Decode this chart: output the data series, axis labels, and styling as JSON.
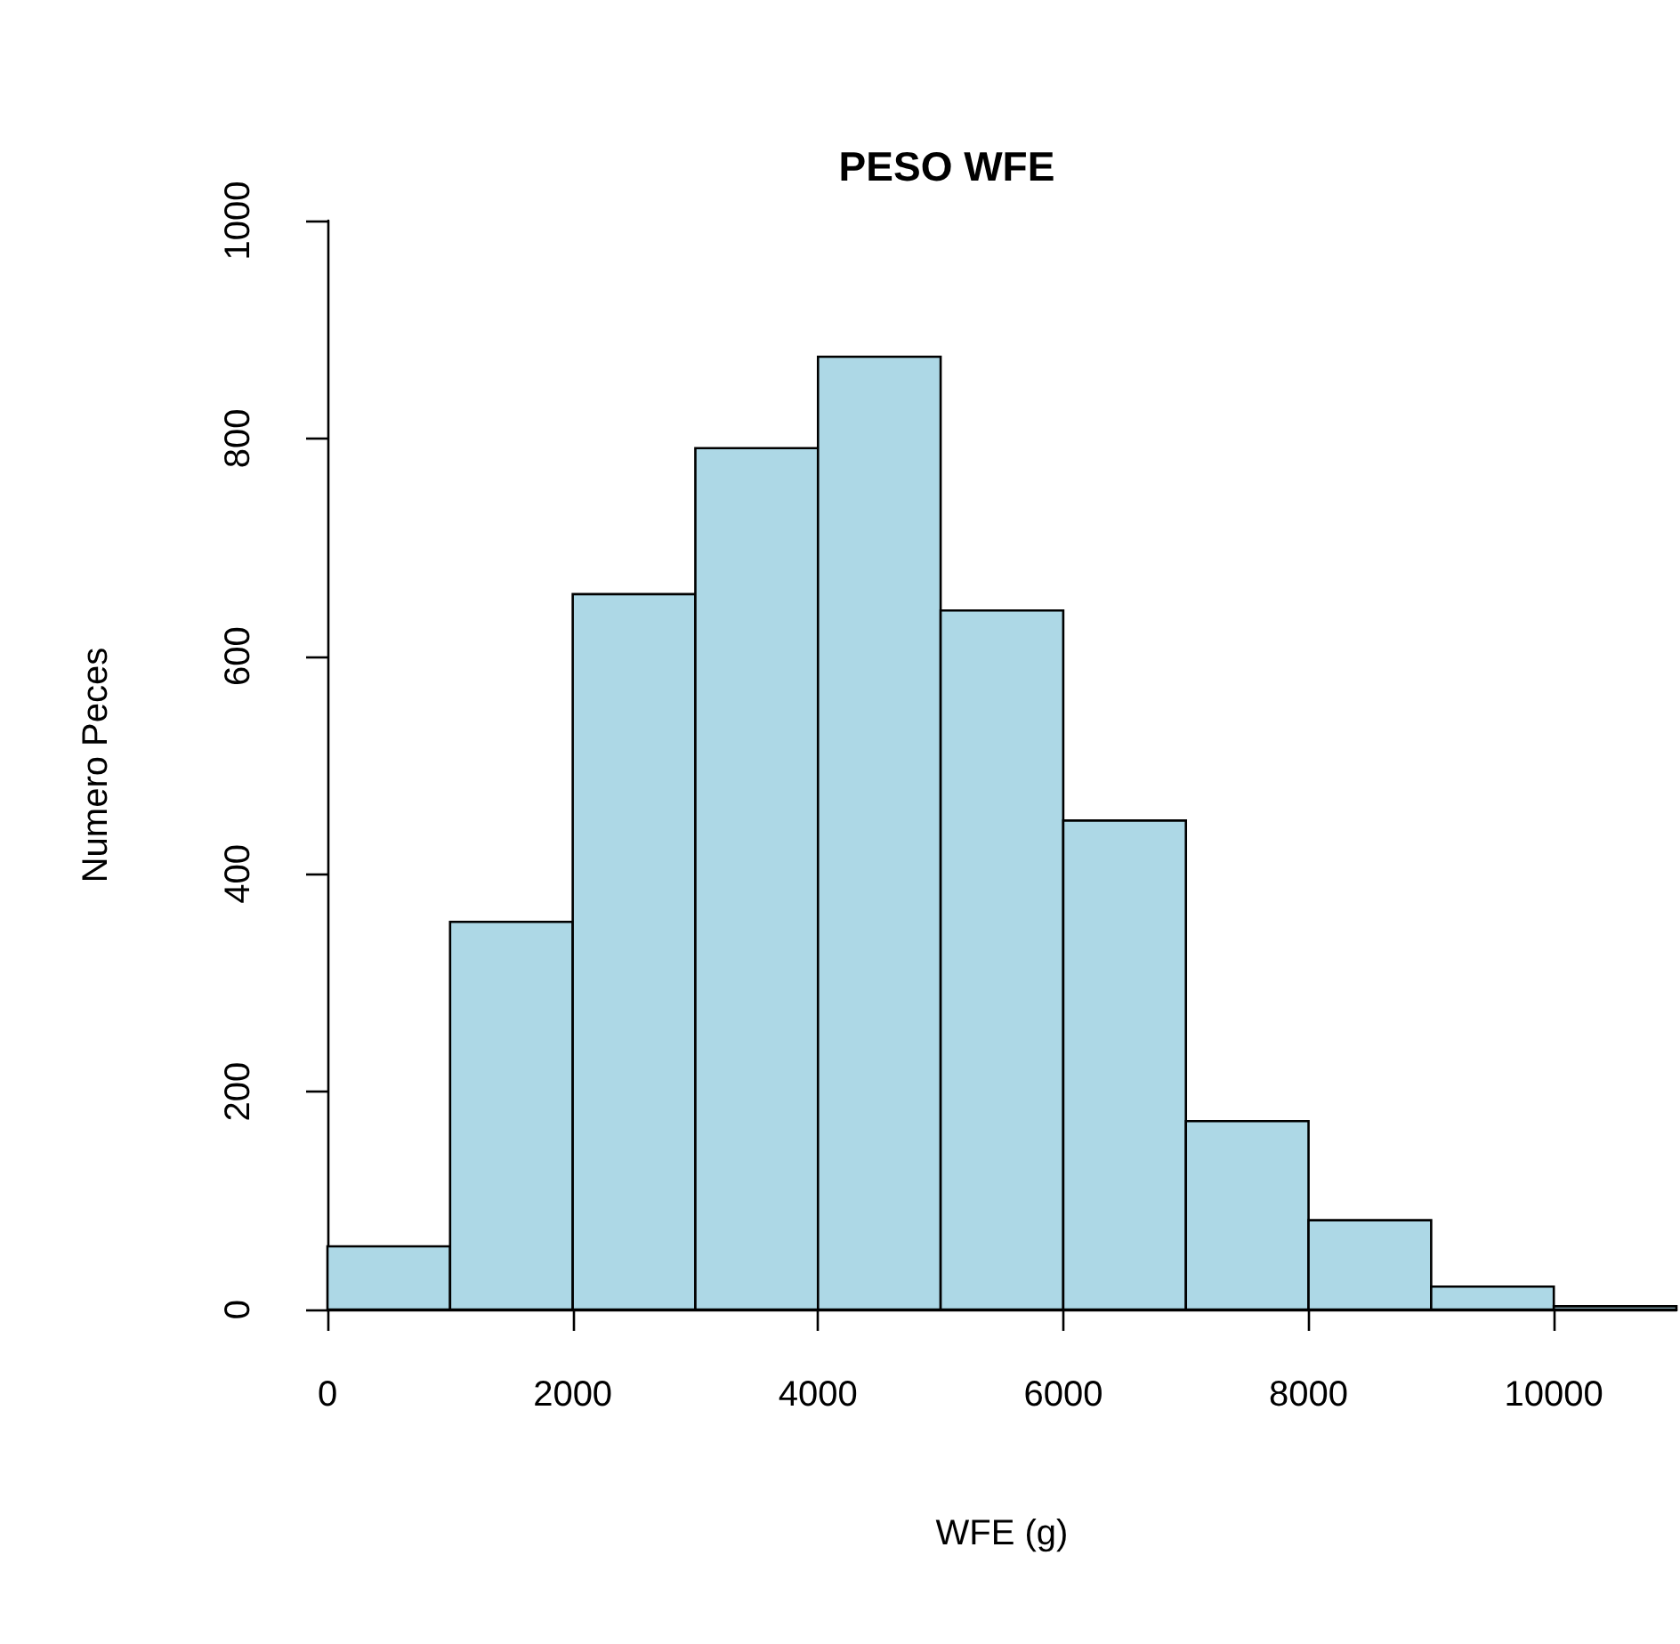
{
  "chart_data": {
    "type": "histogram",
    "title": "PESO WFE",
    "xlabel": "WFE (g)",
    "ylabel": "Numero Peces",
    "bins": [
      0,
      1000,
      2000,
      3000,
      4000,
      5000,
      6000,
      7000,
      8000,
      9000,
      10000,
      11000
    ],
    "values": [
      58,
      356,
      657,
      791,
      875,
      642,
      449,
      173,
      82,
      21,
      3
    ],
    "color": "#add8e6",
    "xlim": [
      0,
      11000
    ],
    "xticks": [
      0,
      2000,
      4000,
      6000,
      8000,
      10000
    ],
    "ylim": [
      0,
      1000
    ],
    "yticks": [
      0,
      200,
      400,
      600,
      800,
      1000
    ],
    "grid": false
  }
}
